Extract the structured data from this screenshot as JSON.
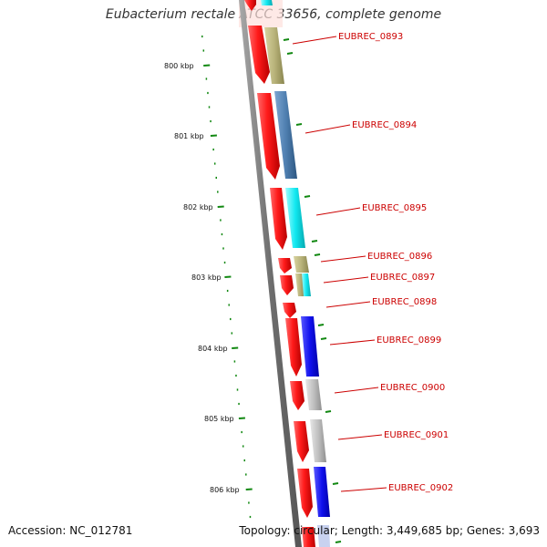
{
  "header": {
    "title": "Eubacterium rectale ATCC 33656, complete genome"
  },
  "footer": {
    "accession": "Accession: NC_012781",
    "topology": "Topology: circular; Length: 3,449,685 bp; Genes: 3,693"
  },
  "colors": {
    "strand_red": "#ee1111",
    "backbone": "#888888",
    "label_red": "#cc0000",
    "tick_green": "#118811",
    "khaki": "#b8b37a",
    "steelblue": "#4f7fb0",
    "cyan": "#11e8f0",
    "blue": "#1111ee",
    "gray": "#c0c0c0"
  },
  "scale": {
    "ticks": [
      "800 kbp",
      "801 kbp",
      "802 kbp",
      "803 kbp",
      "804 kbp",
      "805 kbp",
      "806 kbp"
    ]
  },
  "genes": [
    {
      "label": "EUBREC_0893",
      "color": "khaki"
    },
    {
      "label": "EUBREC_0894",
      "color": "steelblue"
    },
    {
      "label": "EUBREC_0895",
      "color": "cyan"
    },
    {
      "label": "EUBREC_0896",
      "color": "khaki"
    },
    {
      "label": "EUBREC_0897",
      "color": "cyan"
    },
    {
      "label": "EUBREC_0898",
      "color": "none"
    },
    {
      "label": "EUBREC_0899",
      "color": "blue"
    },
    {
      "label": "EUBREC_0900",
      "color": "gray"
    },
    {
      "label": "EUBREC_0901",
      "color": "gray"
    },
    {
      "label": "EUBREC_0902",
      "color": "blue"
    }
  ]
}
